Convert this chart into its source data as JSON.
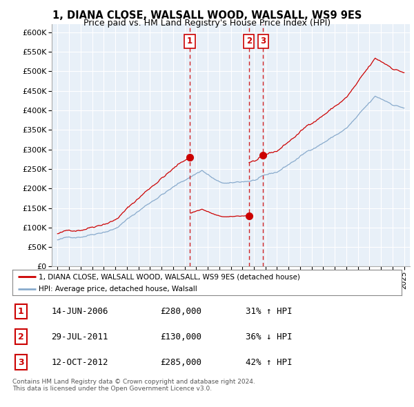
{
  "title": "1, DIANA CLOSE, WALSALL WOOD, WALSALL, WS9 9ES",
  "subtitle": "Price paid vs. HM Land Registry's House Price Index (HPI)",
  "ylim": [
    0,
    620000
  ],
  "yticks": [
    0,
    50000,
    100000,
    150000,
    200000,
    250000,
    300000,
    350000,
    400000,
    450000,
    500000,
    550000,
    600000
  ],
  "sales": [
    {
      "date_num": 2006.45,
      "price": 280000,
      "label": "1"
    },
    {
      "date_num": 2011.57,
      "price": 130000,
      "label": "2"
    },
    {
      "date_num": 2012.79,
      "price": 285000,
      "label": "3"
    }
  ],
  "vline_color": "#cc0000",
  "sale_marker_color": "#cc0000",
  "hpi_line_color": "#88aacc",
  "price_line_color": "#cc0000",
  "chart_bg_color": "#e8f0f8",
  "legend_entries": [
    "1, DIANA CLOSE, WALSALL WOOD, WALSALL, WS9 9ES (detached house)",
    "HPI: Average price, detached house, Walsall"
  ],
  "table_rows": [
    {
      "num": "1",
      "date": "14-JUN-2006",
      "price": "£280,000",
      "hpi": "31% ↑ HPI"
    },
    {
      "num": "2",
      "date": "29-JUL-2011",
      "price": "£130,000",
      "hpi": "36% ↓ HPI"
    },
    {
      "num": "3",
      "date": "12-OCT-2012",
      "price": "£285,000",
      "hpi": "42% ↑ HPI"
    }
  ],
  "footer": "Contains HM Land Registry data © Crown copyright and database right 2024.\nThis data is licensed under the Open Government Licence v3.0.",
  "background_color": "#ffffff",
  "grid_color": "#cccccc"
}
